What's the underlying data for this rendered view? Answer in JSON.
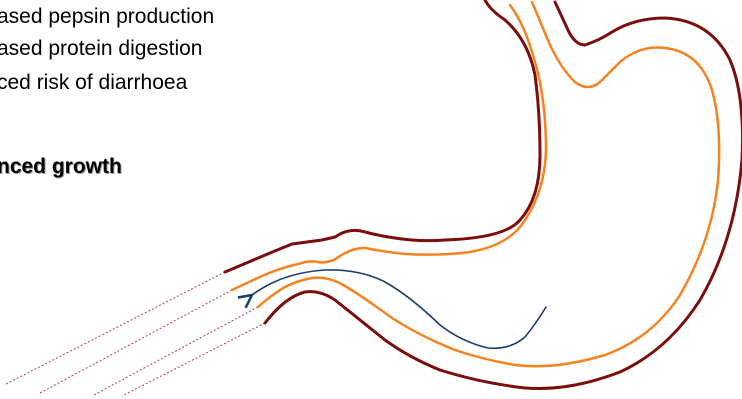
{
  "text": {
    "lines": [
      "ased pepsin production",
      "ased protein digestion",
      "ced risk of diarrhoea"
    ],
    "bold": "nced growth"
  },
  "colors": {
    "outer_wall": "#7b0d0d",
    "inner_wall": "#f58220",
    "arrow": "#1a3e6e",
    "dashed": "#b0413e",
    "text": "#000000"
  },
  "icons": {
    "stomach": "stomach-outline",
    "arrow": "curved-arrow-left"
  }
}
